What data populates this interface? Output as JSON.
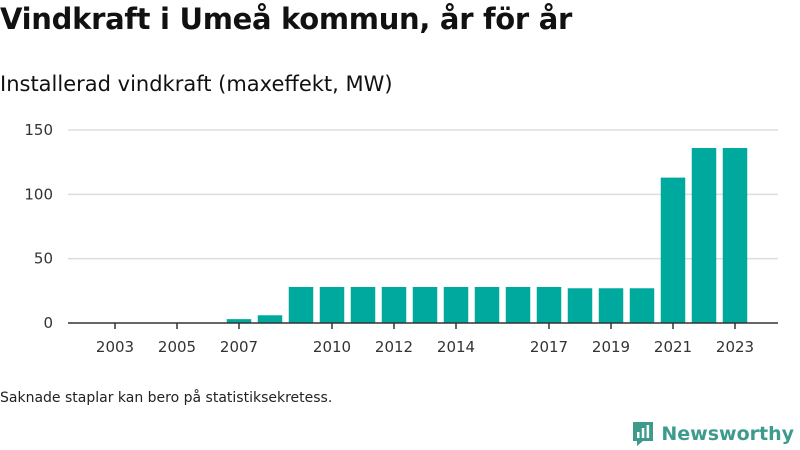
{
  "header": {
    "title": "Vindkraft i Umeå kommun, år för år",
    "subtitle": "Installerad vindkraft (maxeffekt, MW)"
  },
  "footer": {
    "note": "Saknade staplar kan bero på statistiksekretess.",
    "brand": "Newsworthy",
    "brand_icon": "newsworthy-logo-icon"
  },
  "colors": {
    "bar": "#00a99d",
    "grid": "#dddddd",
    "axis": "#333333",
    "brand": "#3d9b8d"
  },
  "chart_data": {
    "type": "bar",
    "title": "Vindkraft i Umeå kommun, år för år",
    "subtitle": "Installerad vindkraft (maxeffekt, MW)",
    "xlabel": "",
    "ylabel": "",
    "categories": [
      "2003",
      "2004",
      "2005",
      "2006",
      "2007",
      "2008",
      "2009",
      "2010",
      "2011",
      "2012",
      "2013",
      "2014",
      "2015",
      "2016",
      "2017",
      "2018",
      "2019",
      "2020",
      "2021",
      "2022",
      "2023"
    ],
    "values": [
      0,
      0,
      0,
      0,
      3,
      6,
      28,
      28,
      28,
      28,
      28,
      28,
      28,
      28,
      28,
      27,
      27,
      27,
      113,
      136,
      136
    ],
    "x_tick_labels": [
      "2003",
      "2005",
      "2007",
      "2010",
      "2012",
      "2014",
      "2017",
      "2019",
      "2021",
      "2023"
    ],
    "ylim": [
      0,
      150
    ],
    "yticks": [
      0,
      50,
      100,
      150
    ],
    "grid": true,
    "legend": "none"
  }
}
